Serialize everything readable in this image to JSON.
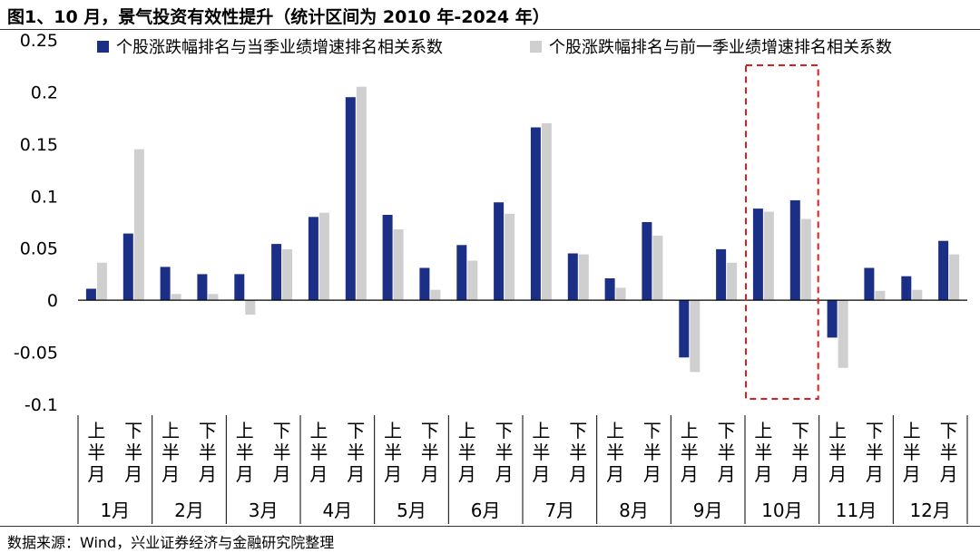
{
  "title": "图1、10 月，景气投资有效性提升（统计区间为 2010 年-2024 年）",
  "source": "数据来源：Wind，兴业证券经济与金融研究院整理",
  "colors": {
    "series1": "#1b2f86",
    "series2": "#cfcfcf",
    "highlight": "#d42020"
  },
  "chart_data": {
    "type": "bar",
    "ylim": [
      -0.1,
      0.25
    ],
    "yticks": [
      "0.25",
      "0.2",
      "0.15",
      "0.1",
      "0.05",
      "0",
      "-0.05",
      "-0.1"
    ],
    "ytick_values": [
      0.25,
      0.2,
      0.15,
      0.1,
      0.05,
      0,
      -0.05,
      -0.1
    ],
    "groups": [
      "1月",
      "2月",
      "3月",
      "4月",
      "5月",
      "6月",
      "7月",
      "8月",
      "9月",
      "10月",
      "11月",
      "12月"
    ],
    "subcategories": [
      "上半月",
      "下半月"
    ],
    "highlight_group": "10月",
    "legend_position": "top",
    "series": [
      {
        "name": "个股涨跌幅排名与当季业绩增速排名相关系数",
        "values": [
          0.011,
          0.064,
          0.032,
          0.025,
          0.025,
          0.054,
          0.08,
          0.195,
          0.082,
          0.031,
          0.053,
          0.094,
          0.166,
          0.045,
          0.021,
          0.075,
          -0.055,
          0.049,
          0.088,
          0.096,
          -0.036,
          0.031,
          0.023,
          0.057
        ]
      },
      {
        "name": "个股涨跌幅排名与前一季业绩增速排名相关系数",
        "values": [
          0.036,
          0.145,
          0.006,
          0.006,
          -0.014,
          0.049,
          0.084,
          0.205,
          0.068,
          0.01,
          0.038,
          0.083,
          0.17,
          0.044,
          0.012,
          0.062,
          -0.069,
          0.036,
          0.085,
          0.078,
          -0.065,
          0.009,
          0.01,
          0.044
        ]
      }
    ]
  }
}
